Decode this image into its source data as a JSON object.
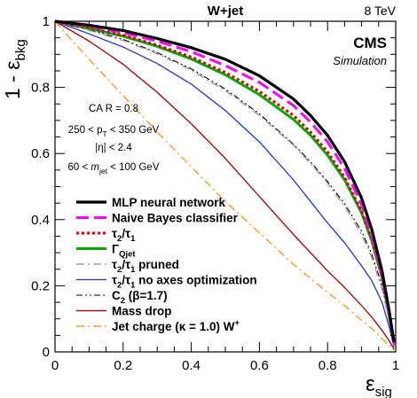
{
  "chart_data": {
    "type": "line",
    "title": "W+jet",
    "energy_label": "8 TeV",
    "experiment": "CMS",
    "experiment_sub": "Simulation",
    "xlabel": "ε",
    "xlabel_sub": "sig",
    "ylabel_prefix": "1 - ε",
    "ylabel_sub": "bkg",
    "xlim": [
      0,
      1
    ],
    "ylim": [
      0,
      1
    ],
    "x_ticks": [
      "0",
      "0.2",
      "0.4",
      "0.6",
      "0.8",
      "1"
    ],
    "y_ticks": [
      "0",
      "0.2",
      "0.4",
      "0.6",
      "0.8",
      "1"
    ],
    "cuts": {
      "line1": "CA R = 0.8",
      "line2_a": "250 < p",
      "line2_sub": "T",
      "line2_b": " < 350 GeV",
      "line3": "|η| < 2.4",
      "line4_a": "60 < ",
      "line4_m": "m",
      "line4_sub": "jet",
      "line4_b": " < 100 GeV"
    },
    "legend_placement": "bottom-left",
    "series": [
      {
        "name": "MLP neural network",
        "color": "#000000",
        "dash": "solid",
        "width": 3.2,
        "x": [
          0,
          0.1,
          0.2,
          0.3,
          0.4,
          0.5,
          0.6,
          0.7,
          0.75,
          0.8,
          0.85,
          0.9,
          0.93,
          0.96,
          0.98,
          0.995
        ],
        "y": [
          1,
          0.988,
          0.972,
          0.948,
          0.92,
          0.885,
          0.835,
          0.765,
          0.715,
          0.655,
          0.575,
          0.465,
          0.37,
          0.245,
          0.13,
          0.03
        ]
      },
      {
        "name": "Naive Bayes classifier",
        "color": "#ff00ff",
        "dash": "long",
        "width": 3.0,
        "x": [
          0,
          0.1,
          0.2,
          0.3,
          0.4,
          0.5,
          0.6,
          0.7,
          0.75,
          0.8,
          0.85,
          0.9,
          0.93,
          0.96,
          0.98,
          0.995
        ],
        "y": [
          1,
          0.985,
          0.966,
          0.94,
          0.908,
          0.866,
          0.815,
          0.745,
          0.695,
          0.635,
          0.555,
          0.445,
          0.35,
          0.23,
          0.12,
          0.025
        ]
      },
      {
        "name": "τ",
        "name_sub1": "2",
        "name_mid": "/τ",
        "name_sub2": "1",
        "color": "#e00000",
        "dash": "dots",
        "width": 3.0,
        "x": [
          0,
          0.1,
          0.2,
          0.3,
          0.4,
          0.5,
          0.6,
          0.7,
          0.75,
          0.8,
          0.85,
          0.9,
          0.93,
          0.96,
          0.98,
          0.995
        ],
        "y": [
          1,
          0.98,
          0.958,
          0.928,
          0.892,
          0.845,
          0.788,
          0.715,
          0.665,
          0.605,
          0.528,
          0.425,
          0.34,
          0.225,
          0.12,
          0.025
        ]
      },
      {
        "name": "Γ",
        "name_sub1": "Qjet",
        "color": "#00aa00",
        "dash": "solid",
        "width": 3.0,
        "x": [
          0,
          0.1,
          0.2,
          0.3,
          0.4,
          0.5,
          0.6,
          0.7,
          0.75,
          0.8,
          0.85,
          0.9,
          0.93,
          0.96,
          0.98,
          0.995
        ],
        "y": [
          1,
          0.978,
          0.955,
          0.924,
          0.886,
          0.838,
          0.778,
          0.703,
          0.655,
          0.595,
          0.52,
          0.42,
          0.335,
          0.225,
          0.12,
          0.025
        ]
      },
      {
        "name": "τ",
        "name_sub1": "2",
        "name_mid": "/τ",
        "name_sub2": "1",
        "name_tail": " pruned",
        "color": "#a0a0a0",
        "dash": "dashdot",
        "width": 1.5,
        "x": [
          0,
          0.1,
          0.2,
          0.3,
          0.4,
          0.5,
          0.6,
          0.7,
          0.75,
          0.8,
          0.85,
          0.9,
          0.93,
          0.96,
          0.98,
          0.995
        ],
        "y": [
          1,
          0.972,
          0.942,
          0.902,
          0.852,
          0.79,
          0.715,
          0.625,
          0.57,
          0.51,
          0.44,
          0.355,
          0.285,
          0.19,
          0.1,
          0.02
        ]
      },
      {
        "name": "τ",
        "name_sub1": "2",
        "name_mid": "/τ",
        "name_sub2": "1",
        "name_tail": " no axes optimization",
        "color": "#2233cc",
        "dash": "solid",
        "width": 1.3,
        "x": [
          0,
          0.1,
          0.2,
          0.3,
          0.4,
          0.5,
          0.6,
          0.7,
          0.75,
          0.8,
          0.85,
          0.9,
          0.93,
          0.96,
          0.98,
          0.995
        ],
        "y": [
          1,
          0.962,
          0.922,
          0.872,
          0.81,
          0.73,
          0.635,
          0.52,
          0.455,
          0.39,
          0.33,
          0.26,
          0.215,
          0.15,
          0.08,
          0.015
        ]
      },
      {
        "name": "C",
        "name_sub1": "2",
        "name_tail": " (β=1.7)",
        "color": "#000000",
        "dash": "dashdotdot",
        "width": 1.1,
        "x": [
          0,
          0.1,
          0.2,
          0.3,
          0.4,
          0.5,
          0.6,
          0.7,
          0.75,
          0.8,
          0.85,
          0.9,
          0.93,
          0.96,
          0.98,
          0.995
        ],
        "y": [
          1,
          0.975,
          0.945,
          0.905,
          0.856,
          0.795,
          0.72,
          0.628,
          0.575,
          0.515,
          0.448,
          0.365,
          0.295,
          0.2,
          0.105,
          0.02
        ]
      },
      {
        "name": "Mass drop",
        "color": "#a01010",
        "dash": "solid",
        "width": 1.4,
        "x": [
          0,
          0.1,
          0.2,
          0.3,
          0.4,
          0.5,
          0.6,
          0.7,
          0.75,
          0.8,
          0.85,
          0.9,
          0.93,
          0.96,
          0.98,
          0.995
        ],
        "y": [
          1,
          0.94,
          0.87,
          0.785,
          0.69,
          0.585,
          0.47,
          0.355,
          0.3,
          0.245,
          0.195,
          0.14,
          0.105,
          0.065,
          0.035,
          0.008
        ]
      },
      {
        "name": "Jet charge (κ = 1.0) W",
        "name_sup": "+",
        "color": "#ff8800",
        "dash": "dashdot",
        "width": 1.2,
        "x": [
          0,
          0.1,
          0.2,
          0.3,
          0.4,
          0.5,
          0.6,
          0.7,
          0.75,
          0.8,
          0.85,
          0.9,
          0.93,
          0.96,
          0.98,
          0.995
        ],
        "y": [
          1,
          0.885,
          0.775,
          0.665,
          0.56,
          0.455,
          0.36,
          0.265,
          0.222,
          0.18,
          0.14,
          0.095,
          0.07,
          0.04,
          0.02,
          0.005
        ]
      }
    ]
  }
}
